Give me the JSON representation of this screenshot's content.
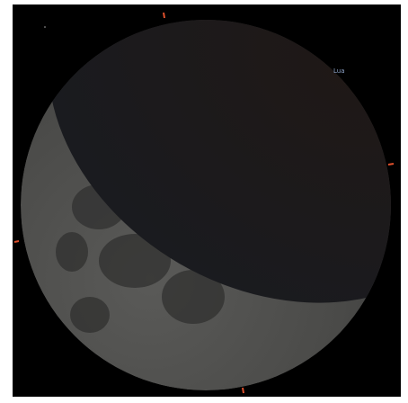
{
  "label": "Lua"
}
